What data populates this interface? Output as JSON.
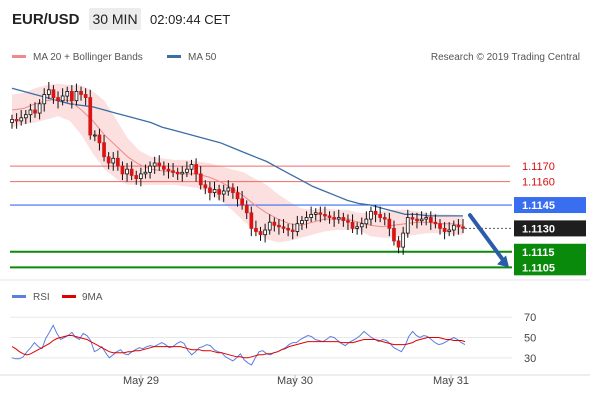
{
  "header": {
    "symbol": "EUR/USD",
    "interval": "30 MIN",
    "time": "02:09:44 CET"
  },
  "legend_main": [
    {
      "label": "MA 20 + Bollinger Bands",
      "color": "#f08a8a"
    },
    {
      "label": "MA 50",
      "color": "#3a6ea5"
    }
  ],
  "legend_rsi": [
    {
      "label": "RSI",
      "color": "#5b7fe0"
    },
    {
      "label": "9MA",
      "color": "#e00000"
    }
  ],
  "credit": "Research © 2019 Trading Central",
  "colors": {
    "up_candle": "#ffffff",
    "down_candle": "#d81414",
    "candle_wick": "#111111",
    "bands": "#fbd4d4",
    "ma20": "#f08a8a",
    "ma50": "#3a6ea5",
    "support": "#0a8a0a",
    "resistance": "#f06a6a",
    "pivot": "#3a6ef0",
    "arrow": "#2a5caa",
    "rsi": "#5b7fe0",
    "rsi_ma": "#e00000"
  },
  "chart_data": [
    {
      "type": "candlestick",
      "x_ticks": [
        "May 29",
        "May 30",
        "May 31"
      ],
      "price_labels": [
        "1.1170",
        "1.1160",
        "1.1145",
        "1.1130",
        "1.1115",
        "1.1105"
      ],
      "levels": [
        {
          "value": 1.117,
          "kind": "resistance"
        },
        {
          "value": 1.116,
          "kind": "resistance"
        },
        {
          "value": 1.1145,
          "kind": "pivot"
        },
        {
          "value": 1.113,
          "kind": "last"
        },
        {
          "value": 1.1115,
          "kind": "support"
        },
        {
          "value": 1.1105,
          "kind": "support"
        }
      ],
      "ylim": [
        1.1102,
        1.1233
      ],
      "forecast": {
        "from": 1.11385,
        "to": 1.1105,
        "direction": "down"
      },
      "close": [
        1.12,
        1.1199,
        1.1201,
        1.1203,
        1.1206,
        1.1204,
        1.121,
        1.1216,
        1.1219,
        1.1214,
        1.1212,
        1.1215,
        1.1218,
        1.1212,
        1.1218,
        1.1216,
        1.1214,
        1.119,
        1.119,
        1.1185,
        1.1176,
        1.1172,
        1.1175,
        1.117,
        1.1165,
        1.1168,
        1.1164,
        1.1162,
        1.1165,
        1.1166,
        1.117,
        1.1172,
        1.117,
        1.1168,
        1.1167,
        1.1166,
        1.1165,
        1.1166,
        1.1168,
        1.1171,
        1.1165,
        1.1158,
        1.1156,
        1.1153,
        1.1155,
        1.1152,
        1.1154,
        1.1156,
        1.1153,
        1.1149,
        1.1145,
        1.114,
        1.113,
        1.1128,
        1.1126,
        1.1129,
        1.1134,
        1.1132,
        1.1131,
        1.113,
        1.1129,
        1.1128,
        1.1133,
        1.1135,
        1.1137,
        1.1139,
        1.114,
        1.1139,
        1.1138,
        1.1137,
        1.1136,
        1.1137,
        1.1135,
        1.1134,
        1.113,
        1.1131,
        1.1133,
        1.1136,
        1.1141,
        1.1139,
        1.1137,
        1.1136,
        1.113,
        1.1122,
        1.1118,
        1.1127,
        1.1137,
        1.1136,
        1.1135,
        1.1136,
        1.1137,
        1.1134,
        1.1133,
        1.113,
        1.1128,
        1.1129,
        1.1132,
        1.1131,
        1.113
      ],
      "ma50": [
        1.122,
        1.1218,
        1.1216,
        1.1214,
        1.1212,
        1.121,
        1.1209,
        1.1208,
        1.1206,
        1.1204,
        1.1202,
        1.12,
        1.1198,
        1.1195,
        1.1193,
        1.1191,
        1.1189,
        1.1187,
        1.1185,
        1.1182,
        1.1179,
        1.1176,
        1.1173,
        1.1169,
        1.1165,
        1.1161,
        1.1157,
        1.1154,
        1.1151,
        1.1148,
        1.1146,
        1.1145,
        1.1143,
        1.1141,
        1.1139,
        1.1139,
        1.1138,
        1.1138,
        1.1138,
        1.1138
      ],
      "ma20": [
        1.1206,
        1.1207,
        1.121,
        1.1212,
        1.1213,
        1.1212,
        1.1206,
        1.1199,
        1.119,
        1.1183,
        1.1176,
        1.1171,
        1.1168,
        1.1167,
        1.1166,
        1.1165,
        1.1165,
        1.1163,
        1.116,
        1.1156,
        1.1151,
        1.1145,
        1.114,
        1.1136,
        1.1133,
        1.1132,
        1.1134,
        1.1136,
        1.1136,
        1.1136,
        1.1134,
        1.1132,
        1.1131,
        1.1132,
        1.1133,
        1.1134,
        1.1134,
        1.1133,
        1.1133,
        1.1132
      ],
      "band_upper": [
        1.1216,
        1.1217,
        1.122,
        1.1222,
        1.1223,
        1.1222,
        1.1222,
        1.1218,
        1.1212,
        1.12,
        1.1188,
        1.118,
        1.1176,
        1.1175,
        1.1174,
        1.1174,
        1.1173,
        1.1172,
        1.117,
        1.1168,
        1.1166,
        1.1162,
        1.1158,
        1.1152,
        1.1147,
        1.1143,
        1.1142,
        1.1143,
        1.1142,
        1.1142,
        1.114,
        1.114,
        1.1141,
        1.1142,
        1.1142,
        1.1141,
        1.114,
        1.1139,
        1.1139,
        1.1138
      ],
      "band_lower": [
        1.1195,
        1.1197,
        1.1198,
        1.12,
        1.1202,
        1.1199,
        1.119,
        1.1178,
        1.1168,
        1.1162,
        1.1158,
        1.1158,
        1.1158,
        1.1158,
        1.1158,
        1.1157,
        1.1156,
        1.1153,
        1.1148,
        1.1142,
        1.1135,
        1.1128,
        1.1123,
        1.1121,
        1.1122,
        1.1124,
        1.1126,
        1.1128,
        1.1129,
        1.1129,
        1.1129,
        1.1125,
        1.1124,
        1.1124,
        1.1125,
        1.1126,
        1.1127,
        1.1127,
        1.1126,
        1.1126
      ]
    },
    {
      "type": "line",
      "name": "RSI",
      "ylim": [
        18,
        82
      ],
      "y_ticks": [
        70,
        50,
        30
      ],
      "rsi": [
        30,
        29,
        29,
        31,
        36,
        40,
        45,
        41,
        39,
        49,
        55,
        62,
        54,
        48,
        50,
        52,
        55,
        50,
        48,
        54,
        52,
        47,
        36,
        38,
        41,
        35,
        30,
        33,
        36,
        38,
        34,
        33,
        36,
        38,
        40,
        39,
        41,
        42,
        41,
        43,
        45,
        43,
        40,
        41,
        44,
        46,
        44,
        37,
        33,
        36,
        40,
        41,
        43,
        42,
        38,
        36,
        35,
        31,
        29,
        27,
        30,
        34,
        28,
        25,
        23,
        30,
        36,
        37,
        34,
        33,
        35,
        36,
        38,
        40,
        43,
        45,
        45,
        48,
        50,
        52,
        51,
        48,
        47,
        46,
        48,
        51,
        50,
        47,
        44,
        42,
        45,
        47,
        49,
        52,
        56,
        53,
        50,
        48,
        46,
        48,
        47,
        44,
        40,
        38,
        36,
        42,
        51,
        56,
        52,
        50,
        52,
        51,
        48,
        45,
        43,
        44,
        46,
        48,
        50,
        48,
        45,
        43
      ],
      "rsi_ma": [
        41,
        39,
        36,
        34,
        33,
        34,
        36,
        38,
        40,
        42,
        44,
        47,
        49,
        50,
        51,
        52,
        52,
        51,
        50,
        49,
        48,
        46,
        44,
        42,
        40,
        38,
        36,
        35,
        35,
        35,
        35,
        36,
        36,
        37,
        37,
        38,
        39,
        40,
        41,
        41,
        41,
        41,
        41,
        41,
        41,
        41,
        40,
        39,
        38,
        38,
        38,
        37,
        37,
        37,
        36,
        35,
        35,
        34,
        33,
        32,
        31,
        31,
        30,
        30,
        31,
        32,
        33,
        33,
        34,
        34,
        35,
        36,
        38,
        39,
        41,
        42,
        43,
        44,
        45,
        46,
        46,
        46,
        46,
        46,
        46,
        46,
        46,
        46,
        45,
        45,
        45,
        45,
        46,
        47,
        48,
        48,
        48,
        48,
        47,
        46,
        45,
        44,
        43,
        43,
        43,
        43,
        44,
        45,
        47,
        48,
        49,
        50,
        50,
        50,
        50,
        49,
        48,
        48,
        47,
        47,
        47,
        46
      ]
    }
  ]
}
